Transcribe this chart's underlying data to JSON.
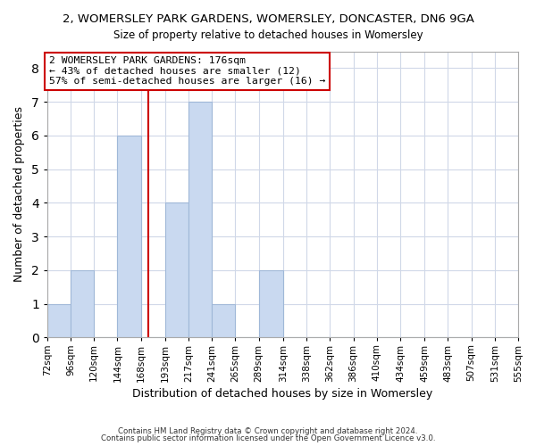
{
  "title": "2, WOMERSLEY PARK GARDENS, WOMERSLEY, DONCASTER, DN6 9GA",
  "subtitle": "Size of property relative to detached houses in Womersley",
  "xlabel": "Distribution of detached houses by size in Womersley",
  "ylabel": "Number of detached properties",
  "bin_edges": [
    72,
    96,
    120,
    144,
    168,
    193,
    217,
    241,
    265,
    289,
    314,
    338,
    362,
    386,
    410,
    434,
    459,
    483,
    507,
    531,
    555
  ],
  "bin_counts": [
    1,
    2,
    0,
    6,
    0,
    4,
    7,
    1,
    0,
    2,
    0,
    0,
    0,
    0,
    0,
    0,
    0,
    0,
    0,
    0
  ],
  "bar_color": "#c9d9f0",
  "bar_edgecolor": "#a0b8d8",
  "reference_line_x": 176,
  "reference_line_color": "#cc0000",
  "annotation_box_color": "#cc0000",
  "annotation_lines": [
    "2 WOMERSLEY PARK GARDENS: 176sqm",
    "← 43% of detached houses are smaller (12)",
    "57% of semi-detached houses are larger (16) →"
  ],
  "ylim": [
    0,
    8.5
  ],
  "yticks": [
    0,
    1,
    2,
    3,
    4,
    5,
    6,
    7,
    8
  ],
  "tick_labels": [
    "72sqm",
    "96sqm",
    "120sqm",
    "144sqm",
    "168sqm",
    "193sqm",
    "217sqm",
    "241sqm",
    "265sqm",
    "289sqm",
    "314sqm",
    "338sqm",
    "362sqm",
    "386sqm",
    "410sqm",
    "434sqm",
    "459sqm",
    "483sqm",
    "507sqm",
    "531sqm",
    "555sqm"
  ],
  "footer_lines": [
    "Contains HM Land Registry data © Crown copyright and database right 2024.",
    "Contains public sector information licensed under the Open Government Licence v3.0."
  ],
  "bg_color": "#ffffff",
  "grid_color": "#d0d8e8"
}
